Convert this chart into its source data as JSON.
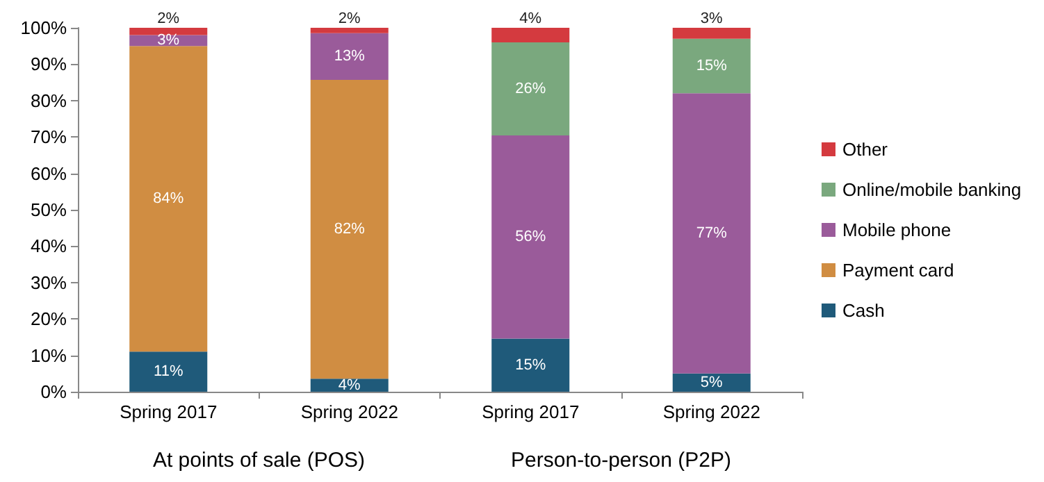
{
  "chart_data": {
    "type": "bar",
    "stacked": true,
    "categories": [
      "Spring 2017",
      "Spring 2022",
      "Spring 2017",
      "Spring 2022"
    ],
    "series": [
      {
        "name": "Cash",
        "color": "#1f5a7a",
        "values": [
          11,
          3.6,
          14.6,
          5
        ],
        "value_labels": [
          "11%",
          "4%",
          "15%",
          "5%"
        ]
      },
      {
        "name": "Payment card",
        "color": "#d08d42",
        "values": [
          84,
          82.1,
          0,
          0
        ],
        "value_labels": [
          "84%",
          "82%",
          null,
          null
        ]
      },
      {
        "name": "Mobile phone",
        "color": "#9a5b9a",
        "values": [
          3,
          12.8,
          55.8,
          77
        ],
        "value_labels": [
          "3%",
          "13%",
          "56%",
          "77%"
        ]
      },
      {
        "name": "Online/mobile banking",
        "color": "#7aa87e",
        "values": [
          0,
          0,
          25.6,
          15
        ],
        "value_labels": [
          null,
          null,
          "26%",
          "15%"
        ]
      },
      {
        "name": "Other",
        "color": "#d43a3f",
        "values": [
          2,
          1.5,
          4,
          3
        ],
        "value_labels": [
          "2%",
          "2%",
          "4%",
          "3%"
        ]
      }
    ],
    "ylim": [
      0,
      100
    ],
    "yticks": [
      {
        "value": 0,
        "label": "0%"
      },
      {
        "value": 10,
        "label": "10%"
      },
      {
        "value": 20,
        "label": "20%"
      },
      {
        "value": 30,
        "label": "30%"
      },
      {
        "value": 40,
        "label": "40%"
      },
      {
        "value": 50,
        "label": "50%"
      },
      {
        "value": 60,
        "label": "60%"
      },
      {
        "value": 70,
        "label": "70%"
      },
      {
        "value": 80,
        "label": "80%"
      },
      {
        "value": 90,
        "label": "90%"
      },
      {
        "value": 100,
        "label": "100%"
      }
    ],
    "grid": false,
    "legend": "right",
    "annotations": [
      {
        "text": "At points of sale (POS)"
      },
      {
        "text": "Person-to-person (P2P)"
      }
    ]
  }
}
